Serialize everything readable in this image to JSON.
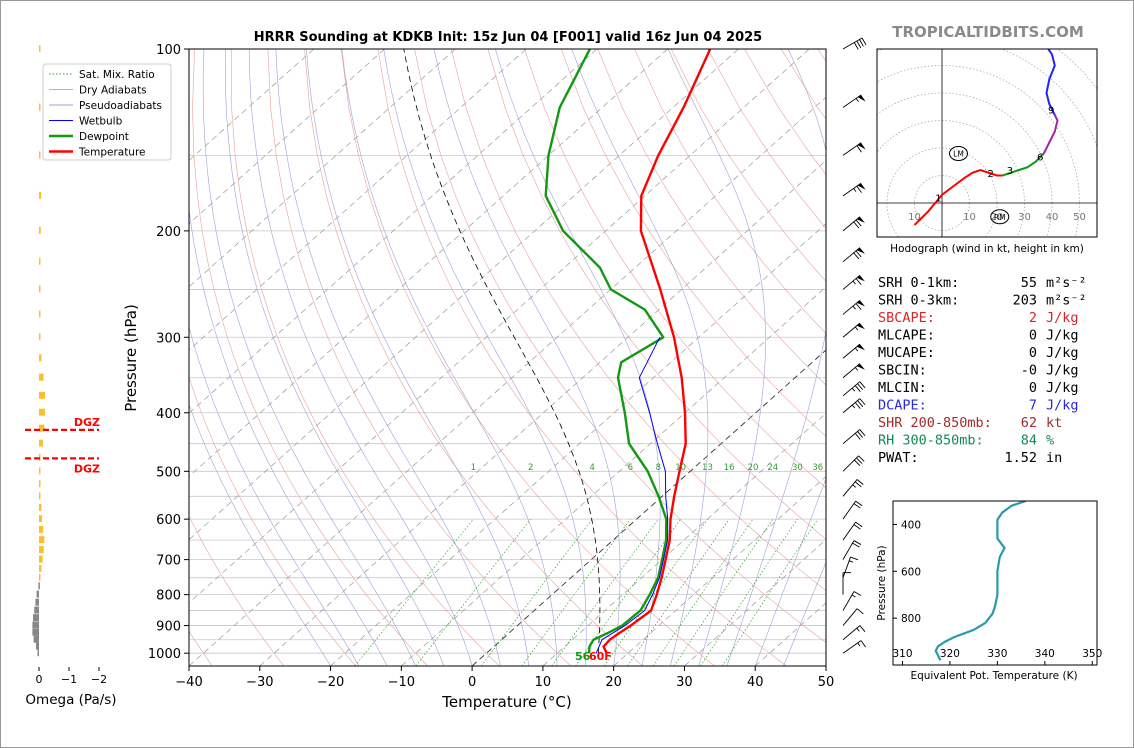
{
  "site_name": "TROPICALTIDBITS.COM",
  "chart_data": [
    {
      "type": "line",
      "chart": "skew-t",
      "title": "HRRR Sounding at KDKB Init: 15z Jun 04 [F001] valid 16z Jun 04 2025",
      "xlabel": "Temperature (°C)",
      "ylabel": "Pressure (hPa)",
      "xlim": [
        -40,
        50
      ],
      "ylim": [
        1050,
        100
      ],
      "y_scale": "log",
      "x_ticks": [
        -40,
        -30,
        -20,
        -10,
        0,
        10,
        20,
        30,
        40,
        50
      ],
      "x_tick_labels": [
        "−40",
        "−30",
        "−20",
        "−10",
        "0",
        "10",
        "20",
        "30",
        "40",
        "50"
      ],
      "y_ticks": [
        100,
        200,
        300,
        400,
        500,
        600,
        700,
        800,
        900,
        1000
      ],
      "legend_position": "top-left",
      "legend": [
        {
          "label": "Sat. Mix. Ratio",
          "color": "#2ca02c",
          "style": "dotted"
        },
        {
          "label": "Dry Adiabats",
          "color": "#e8a0a0",
          "style": "solid"
        },
        {
          "label": "Pseudoadiabats",
          "color": "#a0a0d8",
          "style": "solid"
        },
        {
          "label": "Wetbulb",
          "color": "#0000ff",
          "style": "solid"
        },
        {
          "label": "Dewpoint",
          "color": "#119911",
          "style": "solid"
        },
        {
          "label": "Temperature",
          "color": "#ff0000",
          "style": "solid"
        }
      ],
      "mixing_ratio_labels": [
        "1",
        "2",
        "4",
        "6",
        "8",
        "10",
        "13",
        "16",
        "20",
        "24",
        "30",
        "36"
      ],
      "surface_label": "56",
      "surface_label_color": "#119911",
      "surface_temp_label": "60F",
      "surface_temp_label_color": "#ff0000",
      "series": [
        {
          "name": "Temperature",
          "color": "#ff0000",
          "points": [
            {
              "p": 1000,
              "t": 17.0
            },
            {
              "p": 975,
              "t": 15.5
            },
            {
              "p": 950,
              "t": 15.3
            },
            {
              "p": 925,
              "t": 15.6
            },
            {
              "p": 900,
              "t": 16.0
            },
            {
              "p": 850,
              "t": 16.5
            },
            {
              "p": 800,
              "t": 14.8
            },
            {
              "p": 750,
              "t": 12.8
            },
            {
              "p": 700,
              "t": 10.5
            },
            {
              "p": 650,
              "t": 8.0
            },
            {
              "p": 600,
              "t": 4.8
            },
            {
              "p": 550,
              "t": 1.7
            },
            {
              "p": 500,
              "t": -1.5
            },
            {
              "p": 450,
              "t": -5.0
            },
            {
              "p": 400,
              "t": -10.0
            },
            {
              "p": 350,
              "t": -16.0
            },
            {
              "p": 300,
              "t": -23.5
            },
            {
              "p": 250,
              "t": -33.0
            },
            {
              "p": 200,
              "t": -45.0
            },
            {
              "p": 175,
              "t": -50.5
            },
            {
              "p": 150,
              "t": -54.5
            },
            {
              "p": 125,
              "t": -58.5
            },
            {
              "p": 100,
              "t": -64.0
            }
          ]
        },
        {
          "name": "Dewpoint",
          "color": "#119911",
          "points": [
            {
              "p": 1000,
              "t": 14.5
            },
            {
              "p": 975,
              "t": 13.5
            },
            {
              "p": 950,
              "t": 13.0
            },
            {
              "p": 925,
              "t": 14.0
            },
            {
              "p": 900,
              "t": 14.8
            },
            {
              "p": 850,
              "t": 15.0
            },
            {
              "p": 800,
              "t": 13.8
            },
            {
              "p": 750,
              "t": 12.3
            },
            {
              "p": 700,
              "t": 10.0
            },
            {
              "p": 650,
              "t": 7.5
            },
            {
              "p": 600,
              "t": 4.2
            },
            {
              "p": 550,
              "t": -0.5
            },
            {
              "p": 500,
              "t": -6.0
            },
            {
              "p": 450,
              "t": -13.0
            },
            {
              "p": 400,
              "t": -18.5
            },
            {
              "p": 350,
              "t": -25.0
            },
            {
              "p": 330,
              "t": -27.0
            },
            {
              "p": 300,
              "t": -25.0
            },
            {
              "p": 270,
              "t": -32.0
            },
            {
              "p": 250,
              "t": -40.0
            },
            {
              "p": 230,
              "t": -45.0
            },
            {
              "p": 200,
              "t": -56.0
            },
            {
              "p": 175,
              "t": -64.0
            },
            {
              "p": 150,
              "t": -70.0
            },
            {
              "p": 125,
              "t": -76.0
            },
            {
              "p": 100,
              "t": -81.0
            }
          ]
        },
        {
          "name": "Wetbulb",
          "color": "#0000ff",
          "points": [
            {
              "p": 1000,
              "t": 15.5
            },
            {
              "p": 950,
              "t": 14.2
            },
            {
              "p": 900,
              "t": 15.2
            },
            {
              "p": 850,
              "t": 15.6
            },
            {
              "p": 800,
              "t": 14.2
            },
            {
              "p": 750,
              "t": 12.5
            },
            {
              "p": 700,
              "t": 10.2
            },
            {
              "p": 650,
              "t": 7.7
            },
            {
              "p": 600,
              "t": 4.4
            },
            {
              "p": 550,
              "t": 0.5
            },
            {
              "p": 500,
              "t": -3.5
            },
            {
              "p": 450,
              "t": -9.0
            },
            {
              "p": 400,
              "t": -15.0
            },
            {
              "p": 350,
              "t": -22.0
            },
            {
              "p": 300,
              "t": -25.5
            }
          ]
        }
      ],
      "wind_barbs": [
        {
          "p": 1000,
          "speed": 15,
          "dir": 235
        },
        {
          "p": 950,
          "speed": 15,
          "dir": 230
        },
        {
          "p": 900,
          "speed": 12,
          "dir": 220
        },
        {
          "p": 850,
          "speed": 15,
          "dir": 210
        },
        {
          "p": 800,
          "speed": 10,
          "dir": 180
        },
        {
          "p": 750,
          "speed": 15,
          "dir": 200
        },
        {
          "p": 700,
          "speed": 20,
          "dir": 210
        },
        {
          "p": 650,
          "speed": 20,
          "dir": 215
        },
        {
          "p": 600,
          "speed": 20,
          "dir": 215
        },
        {
          "p": 550,
          "speed": 25,
          "dir": 220
        },
        {
          "p": 500,
          "speed": 30,
          "dir": 225
        },
        {
          "p": 450,
          "speed": 30,
          "dir": 230
        },
        {
          "p": 400,
          "speed": 35,
          "dir": 230
        },
        {
          "p": 375,
          "speed": 35,
          "dir": 230
        },
        {
          "p": 350,
          "speed": 55,
          "dir": 230
        },
        {
          "p": 325,
          "speed": 55,
          "dir": 230
        },
        {
          "p": 300,
          "speed": 55,
          "dir": 230
        },
        {
          "p": 275,
          "speed": 65,
          "dir": 230
        },
        {
          "p": 250,
          "speed": 65,
          "dir": 230
        },
        {
          "p": 225,
          "speed": 70,
          "dir": 230
        },
        {
          "p": 200,
          "speed": 70,
          "dir": 230
        },
        {
          "p": 175,
          "speed": 65,
          "dir": 235
        },
        {
          "p": 150,
          "speed": 60,
          "dir": 235
        },
        {
          "p": 125,
          "speed": 55,
          "dir": 235
        },
        {
          "p": 100,
          "speed": 40,
          "dir": 240
        }
      ]
    },
    {
      "type": "bar",
      "chart": "omega-profile",
      "xlabel": "Omega (Pa/s)",
      "x_ticks": [
        0,
        -1,
        -2
      ],
      "x_tick_labels": [
        "0",
        "−1",
        "−2"
      ],
      "dgz_label": "DGZ",
      "dgz_color": "#ff0000",
      "dgz_levels_hpa": [
        427,
        476
      ],
      "positive_color": "#fcbf2b",
      "negative_color": "#888888",
      "bars": [
        {
          "p": 100,
          "omega": 0.03
        },
        {
          "p": 125,
          "omega": 0.04
        },
        {
          "p": 150,
          "omega": 0.05
        },
        {
          "p": 175,
          "omega": 0.07
        },
        {
          "p": 200,
          "omega": 0.06
        },
        {
          "p": 225,
          "omega": 0.03
        },
        {
          "p": 250,
          "omega": 0.02
        },
        {
          "p": 275,
          "omega": 0.03
        },
        {
          "p": 300,
          "omega": 0.05
        },
        {
          "p": 325,
          "omega": 0.08
        },
        {
          "p": 350,
          "omega": 0.15
        },
        {
          "p": 375,
          "omega": 0.2
        },
        {
          "p": 400,
          "omega": 0.2
        },
        {
          "p": 425,
          "omega": 0.18
        },
        {
          "p": 450,
          "omega": 0.13
        },
        {
          "p": 475,
          "omega": 0.05
        },
        {
          "p": 500,
          "omega": 0.03
        },
        {
          "p": 525,
          "omega": 0.04
        },
        {
          "p": 550,
          "omega": 0.05
        },
        {
          "p": 575,
          "omega": 0.08
        },
        {
          "p": 600,
          "omega": 0.1
        },
        {
          "p": 625,
          "omega": 0.14
        },
        {
          "p": 650,
          "omega": 0.18
        },
        {
          "p": 675,
          "omega": 0.16
        },
        {
          "p": 700,
          "omega": 0.12
        },
        {
          "p": 725,
          "omega": 0.08
        },
        {
          "p": 750,
          "omega": 0.03
        },
        {
          "p": 775,
          "omega": -0.02
        },
        {
          "p": 800,
          "omega": -0.08
        },
        {
          "p": 825,
          "omega": -0.12
        },
        {
          "p": 850,
          "omega": -0.16
        },
        {
          "p": 875,
          "omega": -0.2
        },
        {
          "p": 900,
          "omega": -0.22
        },
        {
          "p": 925,
          "omega": -0.22
        },
        {
          "p": 950,
          "omega": -0.18
        },
        {
          "p": 975,
          "omega": -0.1
        },
        {
          "p": 1000,
          "omega": -0.05
        }
      ]
    },
    {
      "type": "line",
      "chart": "hodograph",
      "xlabel": "Hodograph (wind in kt, height in km)",
      "ring_labels": [
        "10",
        "10",
        "20",
        "30",
        "40",
        "50"
      ],
      "point_labels": [
        {
          "label": "1",
          "u": -1,
          "v": 2
        },
        {
          "label": "2",
          "u": 18,
          "v": 11
        },
        {
          "label": "3",
          "u": 25,
          "v": 12
        },
        {
          "label": "6",
          "u": 36,
          "v": 17
        },
        {
          "label": "9",
          "u": 40,
          "v": 34
        }
      ],
      "storm_markers": [
        {
          "label": "LM",
          "u": 6,
          "v": 18
        },
        {
          "label": "RM",
          "u": 21,
          "v": -5
        }
      ],
      "segments": [
        {
          "color": "#ff0000",
          "points": [
            [
              -10,
              -8
            ],
            [
              -5,
              -3
            ],
            [
              0,
              3
            ],
            [
              4,
              6
            ],
            [
              8,
              9
            ],
            [
              11,
              11
            ],
            [
              14,
              12
            ],
            [
              17,
              11
            ],
            [
              20,
              10
            ],
            [
              22,
              10
            ]
          ]
        },
        {
          "color": "#119911",
          "points": [
            [
              22,
              10
            ],
            [
              25,
              11
            ],
            [
              28,
              12
            ],
            [
              31,
              13
            ],
            [
              34,
              15
            ],
            [
              37,
              18
            ]
          ]
        },
        {
          "color": "#aa22aa",
          "points": [
            [
              37,
              18
            ],
            [
              39,
              22
            ],
            [
              41,
              26
            ],
            [
              42,
              30
            ],
            [
              41,
              32
            ]
          ]
        },
        {
          "color": "#2222ff",
          "points": [
            [
              41,
              32
            ],
            [
              39,
              36
            ],
            [
              38,
              40
            ],
            [
              39,
              45
            ],
            [
              41,
              50
            ],
            [
              40,
              54
            ],
            [
              38,
              57
            ]
          ]
        }
      ]
    },
    {
      "type": "line",
      "chart": "theta-e-profile",
      "xlabel": "Equivalent Pot. Temperature (K)",
      "ylabel": "Pressure (hPa)",
      "xlim": [
        308,
        351
      ],
      "ylim": [
        1000,
        300
      ],
      "x_ticks": [
        310,
        320,
        330,
        340,
        350
      ],
      "y_ticks": [
        400,
        600,
        800
      ],
      "color": "#2a9aaa",
      "points": [
        {
          "p": 300,
          "theta_e": 336
        },
        {
          "p": 320,
          "theta_e": 333
        },
        {
          "p": 350,
          "theta_e": 331
        },
        {
          "p": 380,
          "theta_e": 330
        },
        {
          "p": 420,
          "theta_e": 330
        },
        {
          "p": 460,
          "theta_e": 330
        },
        {
          "p": 500,
          "theta_e": 331.5
        },
        {
          "p": 540,
          "theta_e": 330.5
        },
        {
          "p": 600,
          "theta_e": 330
        },
        {
          "p": 650,
          "theta_e": 330
        },
        {
          "p": 700,
          "theta_e": 330
        },
        {
          "p": 750,
          "theta_e": 329.5
        },
        {
          "p": 780,
          "theta_e": 329
        },
        {
          "p": 820,
          "theta_e": 327.5
        },
        {
          "p": 850,
          "theta_e": 325
        },
        {
          "p": 880,
          "theta_e": 321
        },
        {
          "p": 900,
          "theta_e": 319
        },
        {
          "p": 920,
          "theta_e": 317.5
        },
        {
          "p": 940,
          "theta_e": 317
        },
        {
          "p": 960,
          "theta_e": 317.5
        },
        {
          "p": 980,
          "theta_e": 318
        }
      ]
    }
  ],
  "indices": [
    {
      "name": "SRH 0-1km:",
      "value": "55",
      "unit": "m²s⁻²",
      "color": "#000000"
    },
    {
      "name": "SRH 0-3km:",
      "value": "203",
      "unit": "m²s⁻²",
      "color": "#000000"
    },
    {
      "name": "SBCAPE:",
      "value": "2",
      "unit": "J/kg",
      "color": "#d62728"
    },
    {
      "name": "MLCAPE:",
      "value": "0",
      "unit": "J/kg",
      "color": "#000000"
    },
    {
      "name": "MUCAPE:",
      "value": "0",
      "unit": "J/kg",
      "color": "#000000"
    },
    {
      "name": "SBCIN:",
      "value": "-0",
      "unit": "J/kg",
      "color": "#000000"
    },
    {
      "name": "MLCIN:",
      "value": "0",
      "unit": "J/kg",
      "color": "#000000"
    },
    {
      "name": "DCAPE:",
      "value": "7",
      "unit": "J/kg",
      "color": "#2a2ad4"
    },
    {
      "name": "SHR 200-850mb:",
      "value": "62",
      "unit": "kt",
      "color": "#a52a2a"
    },
    {
      "name": "RH 300-850mb:",
      "value": "84",
      "unit": "%",
      "color": "#118a55"
    },
    {
      "name": "PWAT:",
      "value": "1.52",
      "unit": "in",
      "color": "#000000"
    }
  ]
}
